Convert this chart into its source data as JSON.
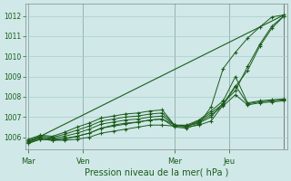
{
  "xlabel": "Pression niveau de la mer( hPa )",
  "bg_color": "#d0e8e8",
  "grid_color": "#a8cccc",
  "line_color": "#1a5c1a",
  "ylim": [
    1005.4,
    1012.6
  ],
  "yticks": [
    1006,
    1007,
    1008,
    1009,
    1010,
    1011,
    1012
  ],
  "day_labels": [
    "Mar",
    "Ven",
    "Mer",
    "Jeu"
  ],
  "day_positions": [
    0,
    18,
    48,
    66
  ],
  "xmax": 84,
  "series": [
    [
      1005.7,
      1005.9,
      1005.85,
      1005.85,
      1005.9,
      1006.0,
      1006.2,
      1006.3,
      1006.4,
      1006.5,
      1006.6,
      1006.6,
      1006.55,
      1006.5,
      1006.6,
      1006.8,
      1007.6,
      1008.5,
      1009.3,
      1010.5,
      1011.4,
      1012.0
    ],
    [
      1005.75,
      1005.95,
      1005.9,
      1005.95,
      1006.05,
      1006.2,
      1006.45,
      1006.6,
      1006.7,
      1006.75,
      1006.85,
      1006.9,
      1006.6,
      1006.55,
      1006.7,
      1007.0,
      1007.7,
      1008.3,
      1009.5,
      1010.6,
      1011.5,
      1012.0
    ],
    [
      1005.8,
      1006.0,
      1005.95,
      1006.05,
      1006.2,
      1006.4,
      1006.65,
      1006.75,
      1006.85,
      1006.9,
      1007.0,
      1007.05,
      1006.6,
      1006.55,
      1006.75,
      1007.1,
      1007.55,
      1008.1,
      1007.6,
      1007.7,
      1007.75,
      1007.8
    ],
    [
      1005.85,
      1006.05,
      1006.0,
      1006.15,
      1006.35,
      1006.55,
      1006.8,
      1006.9,
      1007.0,
      1007.05,
      1007.15,
      1007.2,
      1006.6,
      1006.55,
      1006.8,
      1007.2,
      1007.65,
      1008.55,
      1007.65,
      1007.75,
      1007.8,
      1007.85
    ],
    [
      1005.9,
      1006.1,
      1006.05,
      1006.25,
      1006.5,
      1006.7,
      1006.95,
      1007.05,
      1007.15,
      1007.2,
      1007.3,
      1007.35,
      1006.6,
      1006.6,
      1006.85,
      1007.3,
      1007.8,
      1009.0,
      1007.7,
      1007.8,
      1007.85,
      1007.9
    ],
    [
      1005.7,
      1005.9,
      1005.85,
      1005.9,
      1006.05,
      1006.2,
      1006.45,
      1006.55,
      1006.65,
      1006.75,
      1006.85,
      1006.9,
      1006.5,
      1006.45,
      1006.65,
      1007.5,
      1009.4,
      1010.2,
      1010.9,
      1011.45,
      1011.95,
      1012.05
    ]
  ],
  "straight_line": [
    [
      0,
      84
    ],
    [
      1005.75,
      1012.05
    ]
  ]
}
